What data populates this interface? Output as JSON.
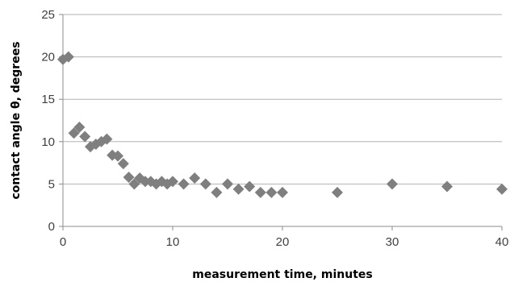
{
  "chart_data": {
    "type": "scatter",
    "title": "",
    "xlabel": "measurement time, minutes",
    "ylabel": "contact angle θ, degrees",
    "xlim": [
      0,
      40
    ],
    "ylim": [
      0,
      25
    ],
    "xticks": [
      0,
      10,
      20,
      30,
      40
    ],
    "yticks": [
      0,
      5,
      10,
      15,
      20,
      25
    ],
    "grid": "horizontal",
    "legend": "none",
    "marker": "diamond",
    "colors": {
      "marker": "#7f7f7f",
      "grid": "#b3b3b3",
      "axis": "#8c8c8c",
      "text": "#404040"
    },
    "series": [
      {
        "points": [
          [
            0.0,
            19.7
          ],
          [
            0.5,
            20.0
          ],
          [
            1.0,
            11.0
          ],
          [
            1.5,
            11.7
          ],
          [
            2.0,
            10.6
          ],
          [
            2.5,
            9.4
          ],
          [
            3.0,
            9.7
          ],
          [
            3.5,
            10.0
          ],
          [
            4.0,
            10.3
          ],
          [
            4.5,
            8.4
          ],
          [
            5.0,
            8.3
          ],
          [
            5.5,
            7.4
          ],
          [
            6.0,
            5.8
          ],
          [
            6.5,
            5.0
          ],
          [
            7.0,
            5.7
          ],
          [
            7.5,
            5.3
          ],
          [
            8.0,
            5.3
          ],
          [
            8.5,
            5.0
          ],
          [
            9.0,
            5.3
          ],
          [
            9.5,
            5.0
          ],
          [
            10.0,
            5.3
          ],
          [
            11.0,
            5.0
          ],
          [
            12.0,
            5.7
          ],
          [
            13.0,
            5.0
          ],
          [
            14.0,
            4.0
          ],
          [
            15.0,
            5.0
          ],
          [
            16.0,
            4.4
          ],
          [
            17.0,
            4.7
          ],
          [
            18.0,
            4.0
          ],
          [
            19.0,
            4.0
          ],
          [
            20.0,
            4.0
          ],
          [
            25.0,
            4.0
          ],
          [
            30.0,
            5.0
          ],
          [
            35.0,
            4.7
          ],
          [
            40.0,
            4.4
          ]
        ]
      }
    ]
  }
}
